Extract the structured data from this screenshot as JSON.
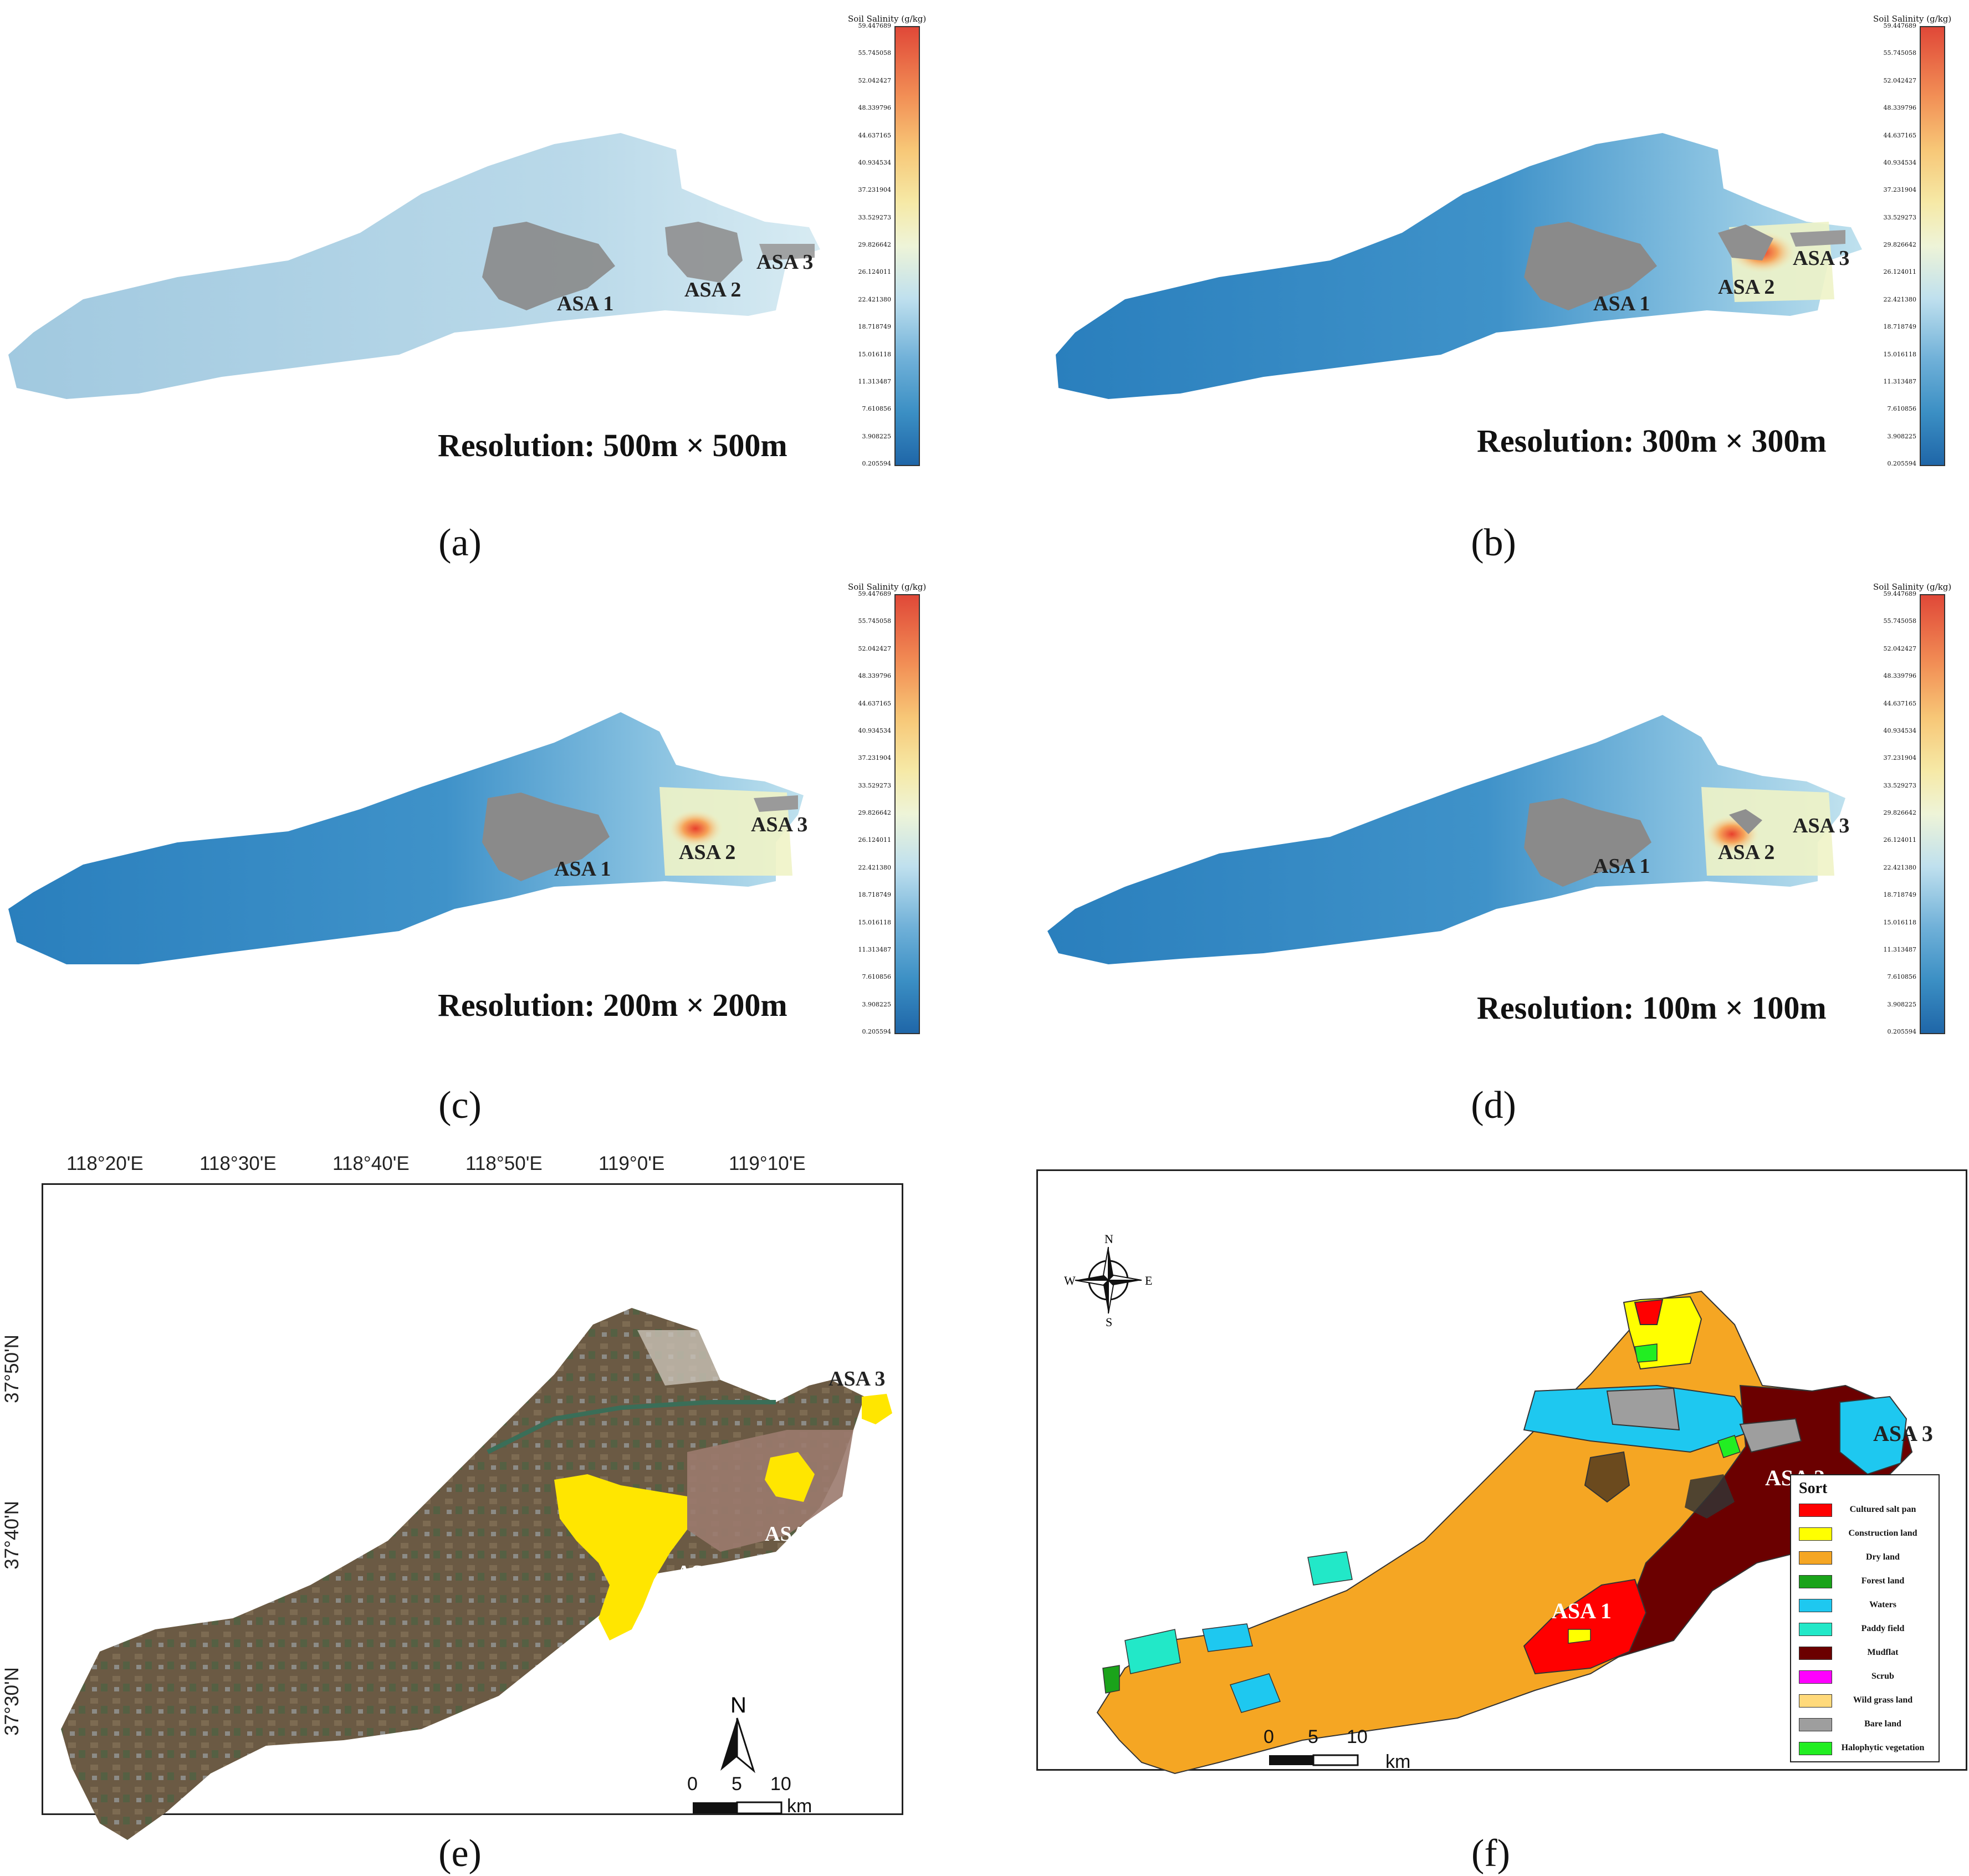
{
  "colorbar": {
    "title": "Soil Salinity (g/kg)",
    "ticks": [
      "59.447689",
      "55.745058",
      "52.042427",
      "48.339796",
      "44.637165",
      "40.934534",
      "37.231904",
      "33.529273",
      "29.826642",
      "26.124011",
      "22.421380",
      "18.718749",
      "15.016118",
      "11.313487",
      "7.610856",
      "3.908225",
      "0.205594"
    ]
  },
  "panels": [
    {
      "label": "(a)",
      "resolution": "Resolution: 500m × 500m"
    },
    {
      "label": "(b)",
      "resolution": "Resolution: 300m × 300m"
    },
    {
      "label": "(c)",
      "resolution": "Resolution: 200m × 200m"
    },
    {
      "label": "(d)",
      "resolution": "Resolution: 100m × 100m"
    },
    {
      "label": "(e)"
    },
    {
      "label": "(f)"
    }
  ],
  "asa_labels": {
    "asa1": "ASA 1",
    "asa2": "ASA 2",
    "asa3": "ASA 3"
  },
  "panel_e": {
    "lon_ticks": [
      "118°20'E",
      "118°30'E",
      "118°40'E",
      "118°50'E",
      "119°0'E",
      "119°10'E"
    ],
    "lat_ticks": [
      "37°50'N",
      "37°40'N",
      "37°30'N"
    ],
    "north": "N",
    "scale": {
      "t0": "0",
      "t5": "5",
      "t10": "10",
      "unit": "km"
    }
  },
  "panel_f": {
    "compass": {
      "n": "N",
      "s": "S",
      "e": "E",
      "w": "W"
    },
    "scale": {
      "t0": "0",
      "t5": "5",
      "t10": "10",
      "unit": "km"
    },
    "legend_title": "Sort",
    "legend": [
      {
        "label": "Cultured salt pan",
        "color": "#ff0000"
      },
      {
        "label": "Construction land",
        "color": "#ffff00"
      },
      {
        "label": "Dry land",
        "color": "#f5a623"
      },
      {
        "label": "Forest land",
        "color": "#1aa31a"
      },
      {
        "label": "Waters",
        "color": "#1ec8f0"
      },
      {
        "label": "Paddy field",
        "color": "#22e8c8"
      },
      {
        "label": "Mudflat",
        "color": "#6b0000"
      },
      {
        "label": "Scrub",
        "color": "#ff00ff"
      },
      {
        "label": "Wild grass land",
        "color": "#ffd97a"
      },
      {
        "label": "Bare land",
        "color": "#9e9e9e"
      },
      {
        "label": "Halophytic vegetation",
        "color": "#22ee22"
      }
    ]
  }
}
